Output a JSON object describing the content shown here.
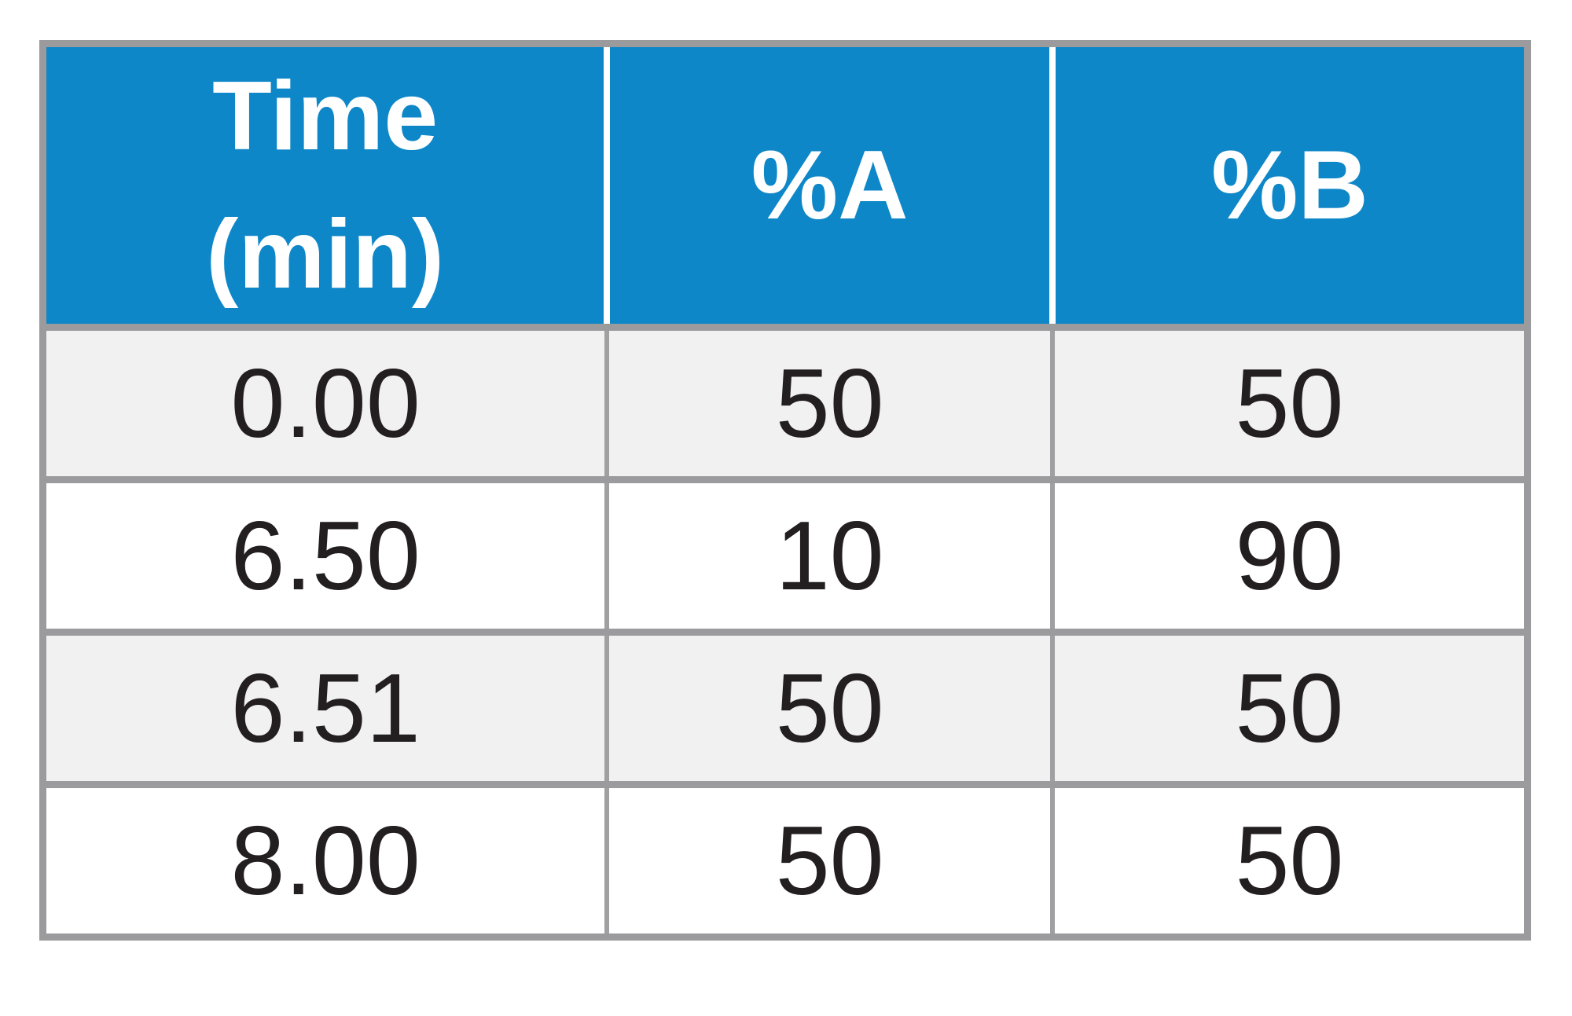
{
  "chart_data": {
    "type": "table",
    "title": "",
    "columns": [
      "Time (min)",
      "%A",
      "%B"
    ],
    "rows": [
      [
        "0.00",
        50,
        50
      ],
      [
        "6.50",
        10,
        90
      ],
      [
        "6.51",
        50,
        50
      ],
      [
        "8.00",
        50,
        50
      ]
    ]
  },
  "table_header": [
    {
      "lines": [
        "Time",
        "(min)"
      ]
    },
    {
      "lines": [
        "%A"
      ]
    },
    {
      "lines": [
        "%B"
      ]
    }
  ],
  "colors": {
    "header-bg": "#0e87c8",
    "header-text": "#ffffff",
    "row-alt-bg": "#f1f1f2",
    "row-bg": "#ffffff",
    "border": "#9b9b9d",
    "cell-divider": "#a0a0a2",
    "header-divider": "#ffffff",
    "text": "#231f20",
    "page-bg": "#ffffff"
  }
}
